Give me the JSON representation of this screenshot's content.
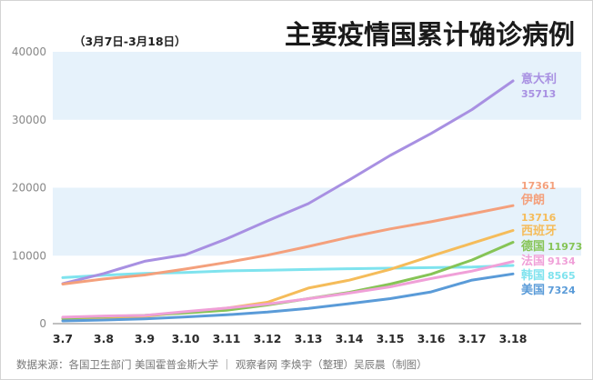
{
  "title": "主要疫情国累计确诊病例",
  "subtitle": "（3月7日-3月18日）",
  "source": "数据来源：各国卫生部门 美国霍普金斯大学 ｜ 观察者网 李焕宇（整理）吴辰晨（制图）",
  "chart_data": {
    "type": "line",
    "x": [
      "3.7",
      "3.8",
      "3.9",
      "3.10",
      "3.11",
      "3.12",
      "3.13",
      "3.14",
      "3.15",
      "3.16",
      "3.17",
      "3.18"
    ],
    "ylim": [
      0,
      40000
    ],
    "yticks": [
      "0",
      "10000",
      "20000",
      "30000",
      "40000"
    ],
    "grid": "alternating horizontal bands",
    "series": [
      {
        "name": "意大利",
        "label": "35713",
        "color": "#a890e2",
        "values": [
          5883,
          7375,
          9172,
          10149,
          12462,
          15113,
          17660,
          21157,
          24747,
          27980,
          31506,
          35713
        ]
      },
      {
        "name": "伊朗",
        "label": "17361",
        "color": "#f4a07c",
        "values": [
          5823,
          6566,
          7161,
          8042,
          9000,
          10075,
          11364,
          12729,
          13938,
          14991,
          16169,
          17361
        ]
      },
      {
        "name": "西班牙",
        "label": "13716",
        "color": "#f5bc5a",
        "values": [
          500,
          673,
          1073,
          1695,
          2277,
          3146,
          5232,
          6391,
          7988,
          9942,
          11826,
          13716
        ]
      },
      {
        "name": "德国",
        "label": "11973",
        "color": "#86c456",
        "values": [
          795,
          1040,
          1224,
          1565,
          1966,
          2745,
          3675,
          4599,
          5813,
          7272,
          9367,
          11973
        ]
      },
      {
        "name": "法国",
        "label": "9134",
        "color": "#f0a0d8",
        "values": [
          949,
          1126,
          1209,
          1784,
          2281,
          2876,
          3661,
          4499,
          5423,
          6633,
          7730,
          9134
        ]
      },
      {
        "name": "韩国",
        "label": "8565",
        "color": "#7fe3ee",
        "values": [
          6767,
          7134,
          7382,
          7513,
          7755,
          7869,
          7979,
          8086,
          8162,
          8236,
          8320,
          8565
        ]
      },
      {
        "name": "美国",
        "label": "7324",
        "color": "#5a9bd8",
        "values": [
          400,
          541,
          704,
          994,
          1301,
          1697,
          2247,
          2943,
          3680,
          4663,
          6411,
          7324
        ]
      }
    ]
  }
}
